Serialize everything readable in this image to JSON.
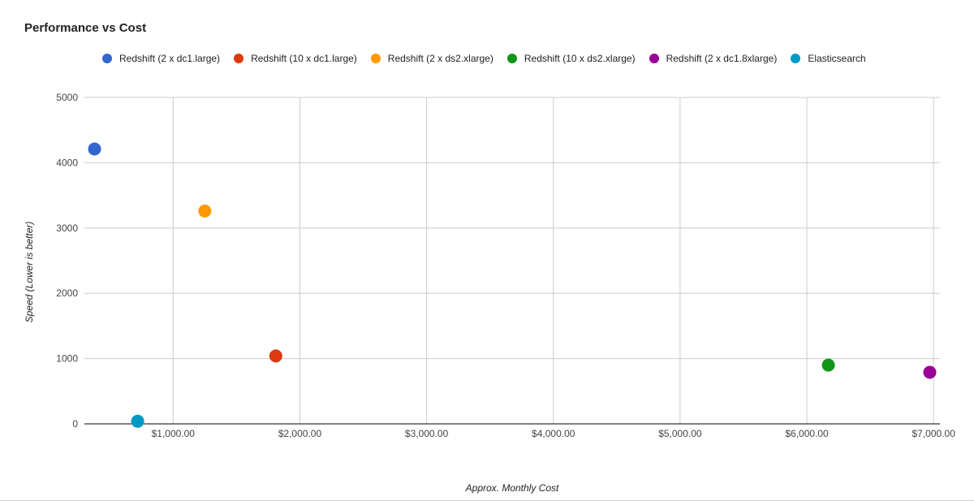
{
  "chart_data": {
    "type": "scatter",
    "title": "Performance vs Cost",
    "xlabel": "Approx. Monthly Cost",
    "ylabel": "Speed (Lower is better)",
    "xlim": [
      300,
      7050
    ],
    "ylim": [
      0,
      5000
    ],
    "x_ticks": [
      {
        "value": 1000,
        "label": "$1,000.00"
      },
      {
        "value": 2000,
        "label": "$2,000.00"
      },
      {
        "value": 3000,
        "label": "$3,000.00"
      },
      {
        "value": 4000,
        "label": "$4,000.00"
      },
      {
        "value": 5000,
        "label": "$5,000.00"
      },
      {
        "value": 6000,
        "label": "$6,000.00"
      },
      {
        "value": 7000,
        "label": "$7,000.00"
      }
    ],
    "y_ticks": [
      {
        "value": 0,
        "label": "0"
      },
      {
        "value": 1000,
        "label": "1000"
      },
      {
        "value": 2000,
        "label": "2000"
      },
      {
        "value": 3000,
        "label": "3000"
      },
      {
        "value": 4000,
        "label": "4000"
      },
      {
        "value": 5000,
        "label": "5000"
      }
    ],
    "grid": true,
    "legend_position": "top",
    "series": [
      {
        "name": "Redshift (2 x dc1.large)",
        "color": "#3366cc",
        "points": [
          {
            "x": 380,
            "y": 4210
          }
        ]
      },
      {
        "name": "Redshift (10 x dc1.large)",
        "color": "#dc3912",
        "points": [
          {
            "x": 1810,
            "y": 1040
          }
        ]
      },
      {
        "name": "Redshift (2 x ds2.xlarge)",
        "color": "#ff9900",
        "points": [
          {
            "x": 1250,
            "y": 3260
          }
        ]
      },
      {
        "name": "Redshift (10 x ds2.xlarge)",
        "color": "#109618",
        "points": [
          {
            "x": 6170,
            "y": 900
          }
        ]
      },
      {
        "name": "Redshift (2 x dc1.8xlarge)",
        "color": "#990099",
        "points": [
          {
            "x": 6970,
            "y": 790
          }
        ]
      },
      {
        "name": "Elasticsearch",
        "color": "#0099c6",
        "points": [
          {
            "x": 720,
            "y": 40
          }
        ]
      }
    ]
  }
}
